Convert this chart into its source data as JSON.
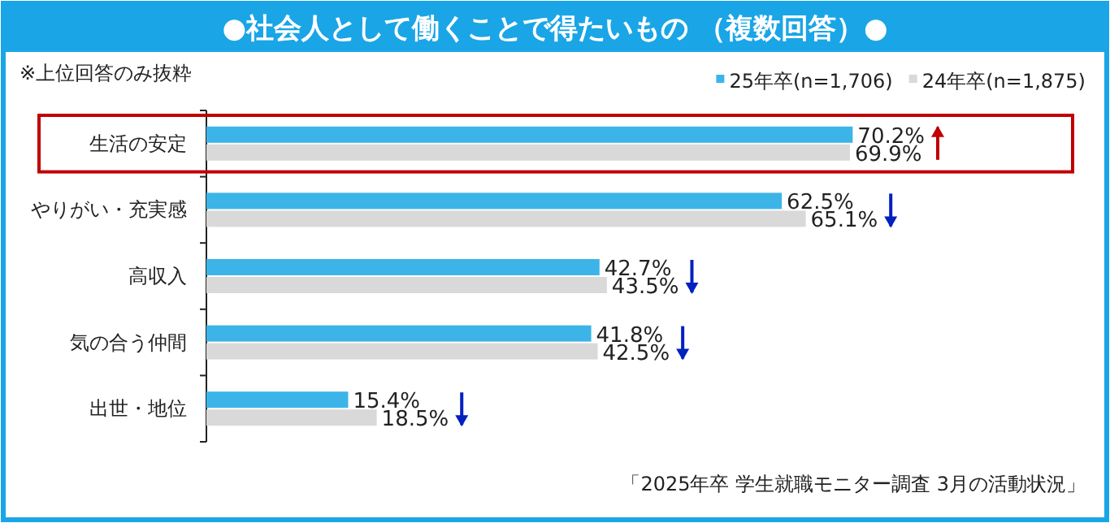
{
  "chart_data": {
    "type": "bar",
    "orientation": "horizontal",
    "title": "●社会人として働くことで得たいもの （複数回答）●",
    "categories": [
      "生活の安定",
      "やりがい・充実感",
      "高収入",
      "気の合う仲間",
      "出世・地位"
    ],
    "series": [
      {
        "name": "25年卒(n=1,706)",
        "color": "#3db4e8",
        "values": [
          70.2,
          62.5,
          42.7,
          41.8,
          15.4
        ],
        "value_labels": [
          "70.2%",
          "62.5%",
          "42.7%",
          "41.8%",
          "15.4%"
        ]
      },
      {
        "name": "24年卒(n=1,875)",
        "color": "#d9d9d9",
        "values": [
          69.9,
          65.1,
          43.5,
          42.5,
          18.5
        ],
        "value_labels": [
          "69.9%",
          "65.1%",
          "43.5%",
          "42.5%",
          "18.5%"
        ]
      }
    ],
    "legend": "top right",
    "annotations": [
      "※上位回答のみ抜粋",
      "「2025年卒 学生就職モニター調査 3月の活動状況」"
    ]
  }
}
